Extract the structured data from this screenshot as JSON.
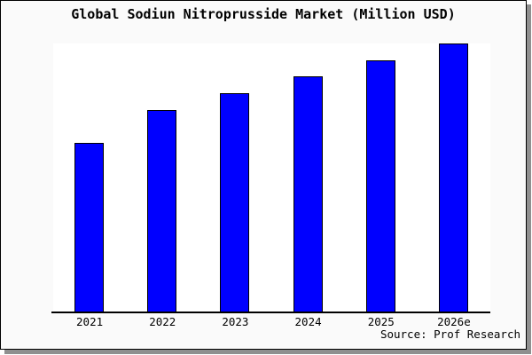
{
  "title": "Global Sodiun Nitroprusside Market (Million USD)",
  "source": "Source: Prof Research",
  "colors": {
    "page_background": "#fafafa",
    "plot_background": "#ffffff",
    "frame_border": "#000000",
    "frame_shadow": "#8f8f8f",
    "bar_fill": "#0000ff",
    "bar_border": "#000000",
    "axis": "#000000",
    "text": "#000000"
  },
  "chart_data": {
    "type": "bar",
    "title": "Global Sodiun Nitroprusside Market (Million USD)",
    "categories": [
      "2021",
      "2022",
      "2023",
      "2024",
      "2025",
      "2026e"
    ],
    "values": [
      62.9,
      75.1,
      81.5,
      87.7,
      93.7,
      100
    ],
    "xlabel": "",
    "ylabel": "",
    "ylim": [
      0,
      100.3
    ],
    "grid": false,
    "legend": false,
    "y_axis_shown": false,
    "source": "Source: Prof Research"
  }
}
